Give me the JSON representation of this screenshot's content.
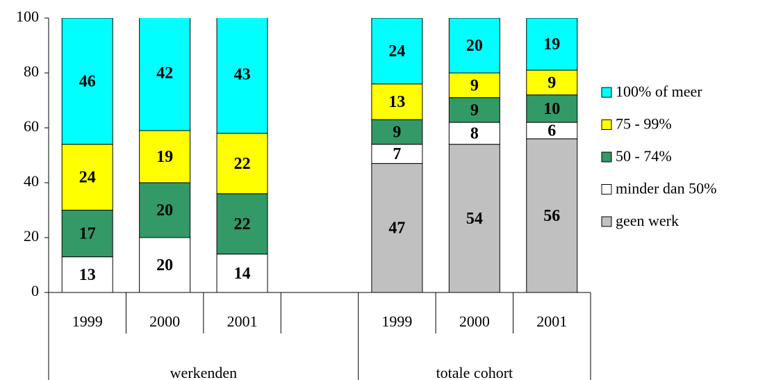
{
  "chart_data": {
    "type": "stacked-bar",
    "categories": [
      "1999",
      "2000",
      "2001",
      null,
      "1999",
      "2000",
      "2001"
    ],
    "group_labels": [
      "werkenden",
      "totale cohort"
    ],
    "series": [
      {
        "name": "geen werk",
        "color": "#c0c0c0",
        "values": [
          null,
          null,
          null,
          null,
          47,
          54,
          56
        ]
      },
      {
        "name": "minder dan 50%",
        "color": "#ffffff",
        "values": [
          13,
          20,
          14,
          null,
          7,
          8,
          6
        ]
      },
      {
        "name": "50 - 74%",
        "color": "#339966",
        "values": [
          17,
          20,
          22,
          null,
          9,
          9,
          10
        ]
      },
      {
        "name": "75 - 99%",
        "color": "#ffff00",
        "values": [
          24,
          19,
          22,
          null,
          13,
          9,
          9
        ]
      },
      {
        "name": "100% of meer",
        "color": "#00ffff",
        "values": [
          46,
          42,
          43,
          null,
          24,
          20,
          19
        ]
      }
    ],
    "ylim": [
      0,
      100
    ],
    "yticks": [
      0,
      20,
      40,
      60,
      80,
      100
    ]
  }
}
